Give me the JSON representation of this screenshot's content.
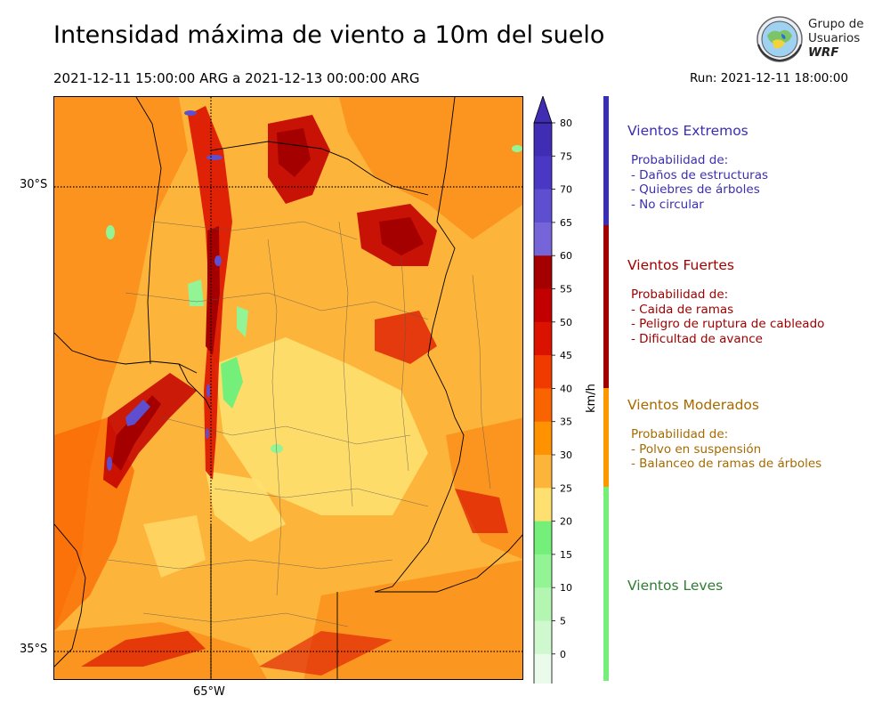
{
  "title": "Intensidad máxima de viento a 10m del suelo",
  "subtitle": "2021-12-11 15:00:00 ARG  a  2021-12-13 00:00:00 ARG",
  "run": "Run: 2021-12-11 18:00:00",
  "logo": {
    "line1": "Grupo de",
    "line2": "Usuarios",
    "brand": "WRF"
  },
  "map_axes": {
    "lat_labels": [
      "30°S",
      "35°S"
    ],
    "lon_labels": [
      "65°W"
    ]
  },
  "colorbar": {
    "units": "km/h",
    "ticks": [
      "80",
      "75",
      "70",
      "65",
      "60",
      "55",
      "50",
      "45",
      "40",
      "35",
      "30",
      "25",
      "20",
      "15",
      "10",
      "5",
      "0"
    ],
    "colors": [
      "#3f2db3",
      "#4a38c4",
      "#5e4ed0",
      "#7565d8",
      "#a50000",
      "#c20000",
      "#dc1200",
      "#f03a00",
      "#fa6400",
      "#fe9200",
      "#fdb43a",
      "#fee070",
      "#74f07a",
      "#92f494",
      "#b2f6b2",
      "#cff8cf",
      "#ebfbeb"
    ]
  },
  "categories": [
    {
      "title": "Vientos Extremos",
      "color": "#3a2fb0",
      "bar_color": "#3a2fb0",
      "lines": [
        "Probabilidad de:",
        "- Daños de estructuras",
        "- Quiebres de árboles",
        "- No circular"
      ]
    },
    {
      "title": "Vientos Fuertes",
      "color": "#a00000",
      "bar_color": "#a00000",
      "lines": [
        "Probabilidad de:",
        "- Caida de ramas",
        "- Peligro de ruptura de cableado",
        "- Dificultad de avance"
      ]
    },
    {
      "title": "Vientos Moderados",
      "color": "#a66a00",
      "bar_color": "#fd9800",
      "lines": [
        "Probabilidad de:",
        "- Polvo en suspensión",
        "- Balanceo de ramas de árboles"
      ]
    },
    {
      "title": "Vientos Leves",
      "color": "#2e7d32",
      "bar_color": "#74f07a",
      "lines": []
    }
  ]
}
